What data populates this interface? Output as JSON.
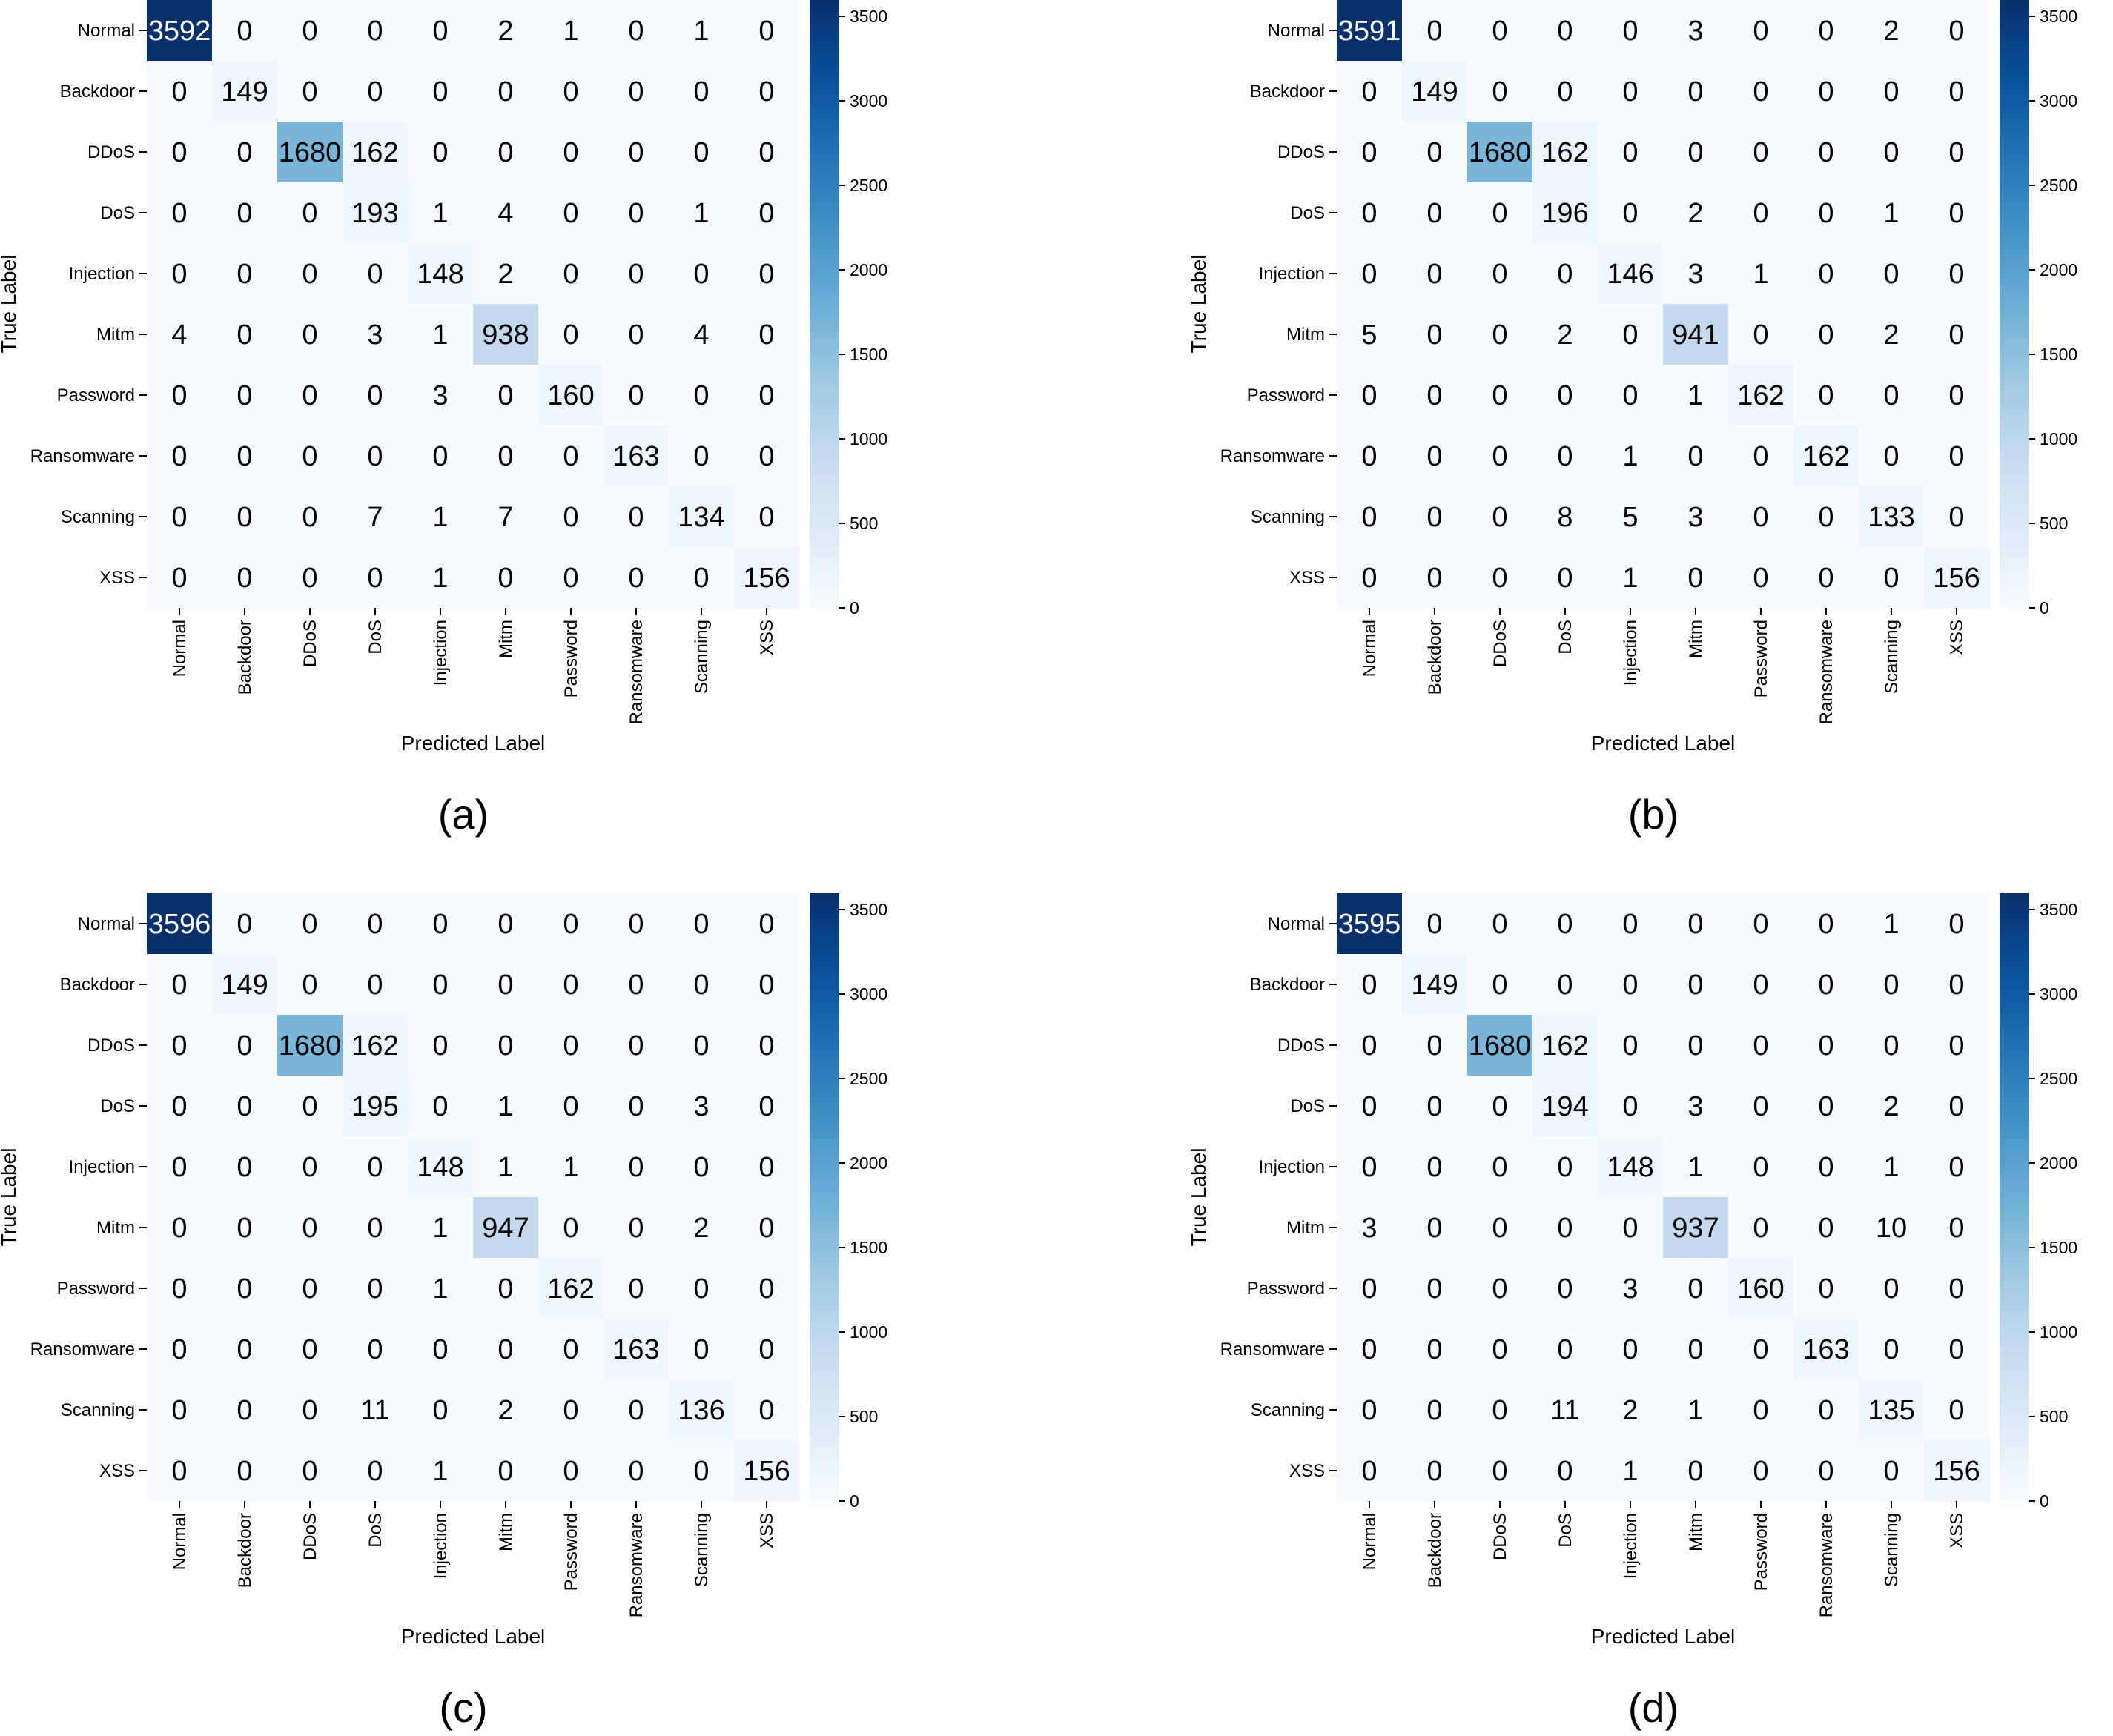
{
  "colorscale": {
    "stops": [
      "#f7fbff",
      "#deebf7",
      "#c6dbef",
      "#9ecae1",
      "#6baed6",
      "#4292c6",
      "#2171b5",
      "#08519c",
      "#08306b"
    ],
    "text_light": "#ffffff",
    "text_dark": "#000000"
  },
  "chart_data": [
    {
      "type": "heatmap",
      "caption": "(a)",
      "xlabel": "Predicted Label",
      "ylabel": "True Label",
      "x_categories": [
        "Normal",
        "Backdoor",
        "DDoS",
        "DoS",
        "Injection",
        "Mitm",
        "Password",
        "Ransomware",
        "Scanning",
        "XSS"
      ],
      "y_categories": [
        "Normal",
        "Backdoor",
        "DDoS",
        "DoS",
        "Injection",
        "Mitm",
        "Password",
        "Ransomware",
        "Scanning",
        "XSS"
      ],
      "matrix": [
        [
          3592,
          0,
          0,
          0,
          0,
          2,
          1,
          0,
          1,
          0
        ],
        [
          0,
          149,
          0,
          0,
          0,
          0,
          0,
          0,
          0,
          0
        ],
        [
          0,
          0,
          1680,
          162,
          0,
          0,
          0,
          0,
          0,
          0
        ],
        [
          0,
          0,
          0,
          193,
          1,
          4,
          0,
          0,
          1,
          0
        ],
        [
          0,
          0,
          0,
          0,
          148,
          2,
          0,
          0,
          0,
          0
        ],
        [
          4,
          0,
          0,
          3,
          1,
          938,
          0,
          0,
          4,
          0
        ],
        [
          0,
          0,
          0,
          0,
          3,
          0,
          160,
          0,
          0,
          0
        ],
        [
          0,
          0,
          0,
          0,
          0,
          0,
          0,
          163,
          0,
          0
        ],
        [
          0,
          0,
          0,
          7,
          1,
          7,
          0,
          0,
          134,
          0
        ],
        [
          0,
          0,
          0,
          0,
          1,
          0,
          0,
          0,
          0,
          156
        ]
      ],
      "colorbar": {
        "range": [
          0,
          3592
        ],
        "ticks": [
          0,
          500,
          1000,
          1500,
          2000,
          2500,
          3000,
          3500
        ]
      }
    },
    {
      "type": "heatmap",
      "caption": "(b)",
      "xlabel": "Predicted Label",
      "ylabel": "True Label",
      "x_categories": [
        "Normal",
        "Backdoor",
        "DDoS",
        "DoS",
        "Injection",
        "Mitm",
        "Password",
        "Ransomware",
        "Scanning",
        "XSS"
      ],
      "y_categories": [
        "Normal",
        "Backdoor",
        "DDoS",
        "DoS",
        "Injection",
        "Mitm",
        "Password",
        "Ransomware",
        "Scanning",
        "XSS"
      ],
      "matrix": [
        [
          3591,
          0,
          0,
          0,
          0,
          3,
          0,
          0,
          2,
          0
        ],
        [
          0,
          149,
          0,
          0,
          0,
          0,
          0,
          0,
          0,
          0
        ],
        [
          0,
          0,
          1680,
          162,
          0,
          0,
          0,
          0,
          0,
          0
        ],
        [
          0,
          0,
          0,
          196,
          0,
          2,
          0,
          0,
          1,
          0
        ],
        [
          0,
          0,
          0,
          0,
          146,
          3,
          1,
          0,
          0,
          0
        ],
        [
          5,
          0,
          0,
          2,
          0,
          941,
          0,
          0,
          2,
          0
        ],
        [
          0,
          0,
          0,
          0,
          0,
          1,
          162,
          0,
          0,
          0
        ],
        [
          0,
          0,
          0,
          0,
          1,
          0,
          0,
          162,
          0,
          0
        ],
        [
          0,
          0,
          0,
          8,
          5,
          3,
          0,
          0,
          133,
          0
        ],
        [
          0,
          0,
          0,
          0,
          1,
          0,
          0,
          0,
          0,
          156
        ]
      ],
      "colorbar": {
        "range": [
          0,
          3591
        ],
        "ticks": [
          0,
          500,
          1000,
          1500,
          2000,
          2500,
          3000,
          3500
        ]
      }
    },
    {
      "type": "heatmap",
      "caption": "(c)",
      "xlabel": "Predicted Label",
      "ylabel": "True Label",
      "x_categories": [
        "Normal",
        "Backdoor",
        "DDoS",
        "DoS",
        "Injection",
        "Mitm",
        "Password",
        "Ransomware",
        "Scanning",
        "XSS"
      ],
      "y_categories": [
        "Normal",
        "Backdoor",
        "DDoS",
        "DoS",
        "Injection",
        "Mitm",
        "Password",
        "Ransomware",
        "Scanning",
        "XSS"
      ],
      "matrix": [
        [
          3596,
          0,
          0,
          0,
          0,
          0,
          0,
          0,
          0,
          0
        ],
        [
          0,
          149,
          0,
          0,
          0,
          0,
          0,
          0,
          0,
          0
        ],
        [
          0,
          0,
          1680,
          162,
          0,
          0,
          0,
          0,
          0,
          0
        ],
        [
          0,
          0,
          0,
          195,
          0,
          1,
          0,
          0,
          3,
          0
        ],
        [
          0,
          0,
          0,
          0,
          148,
          1,
          1,
          0,
          0,
          0
        ],
        [
          0,
          0,
          0,
          0,
          1,
          947,
          0,
          0,
          2,
          0
        ],
        [
          0,
          0,
          0,
          0,
          1,
          0,
          162,
          0,
          0,
          0
        ],
        [
          0,
          0,
          0,
          0,
          0,
          0,
          0,
          163,
          0,
          0
        ],
        [
          0,
          0,
          0,
          11,
          0,
          2,
          0,
          0,
          136,
          0
        ],
        [
          0,
          0,
          0,
          0,
          1,
          0,
          0,
          0,
          0,
          156
        ]
      ],
      "colorbar": {
        "range": [
          0,
          3596
        ],
        "ticks": [
          0,
          500,
          1000,
          1500,
          2000,
          2500,
          3000,
          3500
        ]
      }
    },
    {
      "type": "heatmap",
      "caption": "(d)",
      "xlabel": "Predicted Label",
      "ylabel": "True Label",
      "x_categories": [
        "Normal",
        "Backdoor",
        "DDoS",
        "DoS",
        "Injection",
        "Mitm",
        "Password",
        "Ransomware",
        "Scanning",
        "XSS"
      ],
      "y_categories": [
        "Normal",
        "Backdoor",
        "DDoS",
        "DoS",
        "Injection",
        "Mitm",
        "Password",
        "Ransomware",
        "Scanning",
        "XSS"
      ],
      "matrix": [
        [
          3595,
          0,
          0,
          0,
          0,
          0,
          0,
          0,
          1,
          0
        ],
        [
          0,
          149,
          0,
          0,
          0,
          0,
          0,
          0,
          0,
          0
        ],
        [
          0,
          0,
          1680,
          162,
          0,
          0,
          0,
          0,
          0,
          0
        ],
        [
          0,
          0,
          0,
          194,
          0,
          3,
          0,
          0,
          2,
          0
        ],
        [
          0,
          0,
          0,
          0,
          148,
          1,
          0,
          0,
          1,
          0
        ],
        [
          3,
          0,
          0,
          0,
          0,
          937,
          0,
          0,
          10,
          0
        ],
        [
          0,
          0,
          0,
          0,
          3,
          0,
          160,
          0,
          0,
          0
        ],
        [
          0,
          0,
          0,
          0,
          0,
          0,
          0,
          163,
          0,
          0
        ],
        [
          0,
          0,
          0,
          11,
          2,
          1,
          0,
          0,
          135,
          0
        ],
        [
          0,
          0,
          0,
          0,
          1,
          0,
          0,
          0,
          0,
          156
        ]
      ],
      "colorbar": {
        "range": [
          0,
          3595
        ],
        "ticks": [
          0,
          500,
          1000,
          1500,
          2000,
          2500,
          3000,
          3500
        ]
      }
    }
  ]
}
